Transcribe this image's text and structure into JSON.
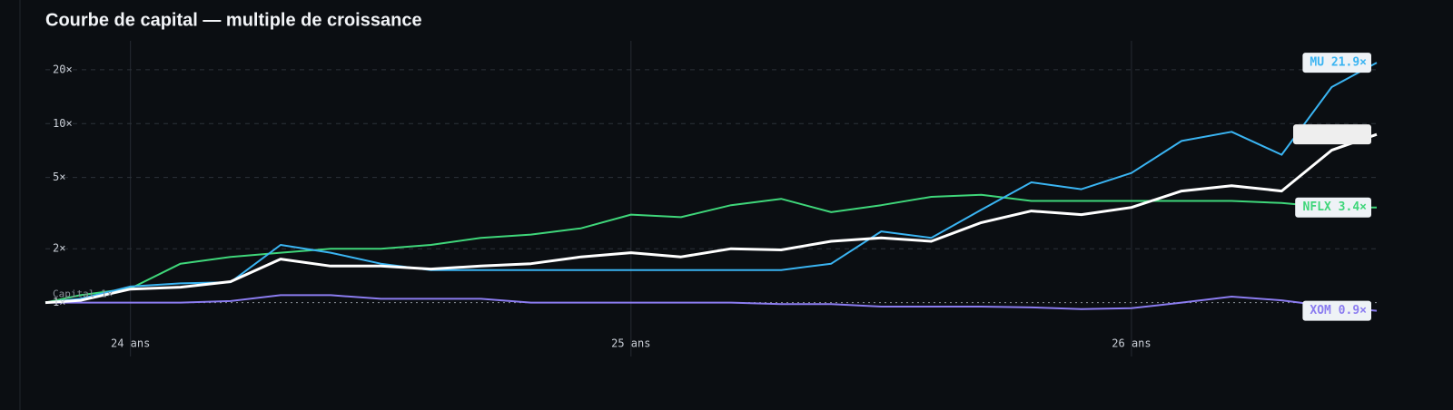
{
  "chart_data": {
    "type": "line",
    "title": "Courbe de capital — multiple de croissance",
    "annotation": "Capital 1×",
    "log_y": true,
    "grid": true,
    "x": [
      23.83,
      23.9,
      24.0,
      24.1,
      24.2,
      24.3,
      24.4,
      24.5,
      24.6,
      24.7,
      24.8,
      24.9,
      25.0,
      25.1,
      25.2,
      25.3,
      25.4,
      25.5,
      25.6,
      25.7,
      25.8,
      25.9,
      26.0,
      26.1,
      26.2,
      26.3,
      26.4,
      26.49
    ],
    "xlim": [
      23.83,
      26.49
    ],
    "xticks": [
      {
        "value": 24,
        "label": "24 ans"
      },
      {
        "value": 25,
        "label": "25 ans"
      },
      {
        "value": 26,
        "label": "26 ans"
      }
    ],
    "ylim": [
      0.5,
      29
    ],
    "yticks": [
      {
        "value": 1,
        "label": "1×"
      },
      {
        "value": 2,
        "label": "2×"
      },
      {
        "value": 5,
        "label": "5×"
      },
      {
        "value": 10,
        "label": "10×"
      },
      {
        "value": 20,
        "label": "20×"
      }
    ],
    "series": [
      {
        "name": "XOM 0.9×",
        "color": "#8b7cf0",
        "values": [
          1,
          1,
          1,
          1,
          1.02,
          1.1,
          1.1,
          1.05,
          1.05,
          1.05,
          1,
          1,
          1,
          1,
          1,
          0.98,
          0.98,
          0.95,
          0.95,
          0.95,
          0.94,
          0.92,
          0.93,
          1,
          1.08,
          1.03,
          0.95,
          0.9
        ]
      },
      {
        "name": "NFLX 3.4×",
        "color": "#3fd67a",
        "values": [
          1,
          1.1,
          1.2,
          1.65,
          1.8,
          1.9,
          2,
          2,
          2.1,
          2.3,
          2.4,
          2.6,
          3.1,
          3,
          3.5,
          3.8,
          3.2,
          3.5,
          3.9,
          4,
          3.7,
          3.7,
          3.7,
          3.7,
          3.7,
          3.6,
          3.4,
          3.4
        ]
      },
      {
        "name": "MU 21.9×",
        "color": "#3ab4f2",
        "values": [
          1,
          1.05,
          1.23,
          1.28,
          1.3,
          2.1,
          1.9,
          1.65,
          1.52,
          1.52,
          1.52,
          1.52,
          1.52,
          1.52,
          1.52,
          1.52,
          1.65,
          2.5,
          2.3,
          3.3,
          4.7,
          4.3,
          5.3,
          8,
          9,
          6.7,
          16,
          21.9
        ]
      },
      {
        "color": "#ffffff",
        "values": [
          1,
          1.03,
          1.19,
          1.22,
          1.31,
          1.75,
          1.6,
          1.6,
          1.54,
          1.6,
          1.65,
          1.8,
          1.9,
          1.8,
          2,
          1.97,
          2.2,
          2.3,
          2.2,
          2.8,
          3.25,
          3.1,
          3.4,
          4.2,
          4.5,
          4.2,
          7.1,
          8.7
        ]
      }
    ]
  }
}
